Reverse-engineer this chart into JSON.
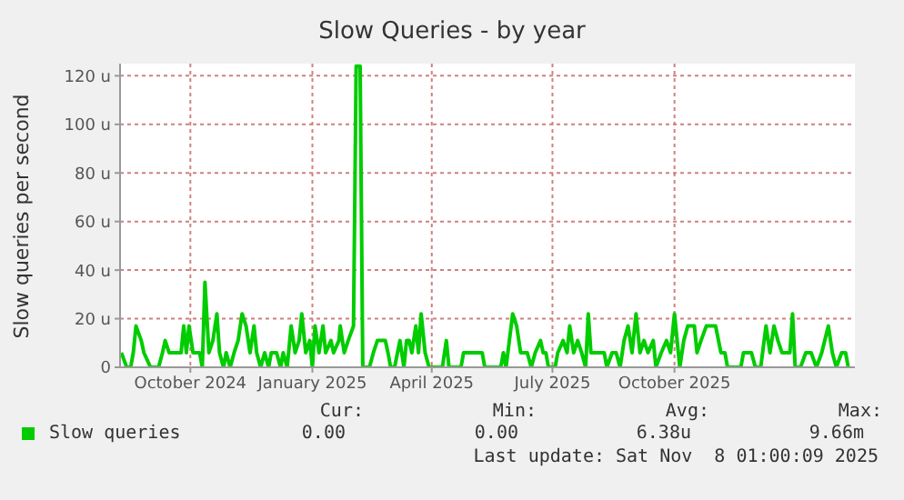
{
  "chart_data": {
    "type": "line",
    "title": "Slow Queries - by year",
    "ylabel": "Slow queries per second",
    "x": [
      "2024-08-10",
      "2024-08-14",
      "2024-08-17",
      "2024-08-19",
      "2024-08-21",
      "2024-08-25",
      "2024-08-27",
      "2024-09-01",
      "2024-09-07",
      "2024-09-10",
      "2024-09-12",
      "2024-09-15",
      "2024-09-24",
      "2024-09-26",
      "2024-09-28",
      "2024-09-30",
      "2024-10-03",
      "2024-10-08",
      "2024-10-10",
      "2024-10-12",
      "2024-10-15",
      "2024-10-18",
      "2024-10-21",
      "2024-10-23",
      "2024-10-26",
      "2024-10-28",
      "2024-10-31",
      "2024-11-03",
      "2024-11-06",
      "2024-11-09",
      "2024-11-12",
      "2024-11-15",
      "2024-11-18",
      "2024-11-20",
      "2024-11-23",
      "2024-11-26",
      "2024-11-29",
      "2024-12-01",
      "2024-12-05",
      "2024-12-08",
      "2024-12-10",
      "2024-12-13",
      "2024-12-16",
      "2024-12-19",
      "2024-12-22",
      "2024-12-24",
      "2024-12-27",
      "2024-12-30",
      "2025-01-01",
      "2025-01-03",
      "2025-01-06",
      "2025-01-09",
      "2025-01-11",
      "2025-01-15",
      "2025-01-17",
      "2025-01-21",
      "2025-01-22",
      "2025-01-25",
      "2025-01-28",
      "2025-02-01",
      "2025-02-03",
      "2025-02-06",
      "2025-02-08",
      "2025-02-13",
      "2025-02-16",
      "2025-02-19",
      "2025-02-22",
      "2025-02-25",
      "2025-02-27",
      "2025-03-01",
      "2025-03-04",
      "2025-03-08",
      "2025-03-11",
      "2025-03-13",
      "2025-03-15",
      "2025-03-17",
      "2025-03-20",
      "2025-03-22",
      "2025-03-24",
      "2025-03-27",
      "2025-03-30",
      "2025-04-09",
      "2025-04-12",
      "2025-04-14",
      "2025-04-23",
      "2025-04-25",
      "2025-05-09",
      "2025-05-11",
      "2025-05-23",
      "2025-05-25",
      "2025-05-27",
      "2025-06-01",
      "2025-06-04",
      "2025-06-07",
      "2025-06-12",
      "2025-06-15",
      "2025-06-18",
      "2025-06-22",
      "2025-06-24",
      "2025-06-26",
      "2025-06-28",
      "2025-07-03",
      "2025-07-05",
      "2025-07-09",
      "2025-07-12",
      "2025-07-14",
      "2025-07-17",
      "2025-07-20",
      "2025-07-23",
      "2025-07-26",
      "2025-07-28",
      "2025-07-30",
      "2025-08-04",
      "2025-08-09",
      "2025-08-11",
      "2025-08-15",
      "2025-08-18",
      "2025-08-21",
      "2025-08-24",
      "2025-08-27",
      "2025-08-30",
      "2025-09-02",
      "2025-09-05",
      "2025-09-08",
      "2025-09-11",
      "2025-09-15",
      "2025-09-17",
      "2025-09-21",
      "2025-09-25",
      "2025-09-28",
      "2025-10-01",
      "2025-10-05",
      "2025-10-08",
      "2025-10-11",
      "2025-10-16",
      "2025-10-18",
      "2025-10-21",
      "2025-10-25",
      "2025-11-01",
      "2025-11-05",
      "2025-11-08",
      "2025-11-10",
      "2025-11-20",
      "2025-11-22",
      "2025-11-28",
      "2025-12-01",
      "2025-12-05",
      "2025-12-09",
      "2025-12-12",
      "2025-12-15",
      "2025-12-18",
      "2025-12-21",
      "2025-12-27",
      "2025-12-29",
      "2025-12-31",
      "2026-01-04",
      "2026-01-08",
      "2026-01-12",
      "2026-01-16",
      "2026-01-20",
      "2026-01-25",
      "2026-01-28",
      "2026-01-31",
      "2026-02-04",
      "2026-02-07",
      "2026-02-09"
    ],
    "series": [
      {
        "name": "Slow queries",
        "color": "#00cc00",
        "values": [
          6,
          0,
          0,
          6,
          17,
          11,
          6,
          0,
          0,
          6,
          11,
          6,
          6,
          17,
          6,
          17,
          6,
          6,
          0,
          35,
          6,
          11,
          22,
          6,
          0,
          6,
          0,
          6,
          11,
          22,
          17,
          6,
          17,
          6,
          0,
          6,
          0,
          6,
          6,
          0,
          6,
          0,
          17,
          6,
          11,
          22,
          6,
          11,
          0,
          17,
          6,
          17,
          6,
          11,
          6,
          11,
          17,
          6,
          11,
          17,
          124,
          124,
          0,
          0,
          6,
          11,
          11,
          11,
          6,
          0,
          0,
          11,
          0,
          11,
          11,
          6,
          17,
          6,
          22,
          6,
          0,
          0,
          11,
          0,
          0,
          6,
          6,
          0,
          0,
          6,
          0,
          22,
          17,
          6,
          6,
          0,
          6,
          11,
          6,
          6,
          0,
          0,
          6,
          11,
          6,
          17,
          6,
          11,
          6,
          0,
          22,
          6,
          6,
          6,
          0,
          6,
          6,
          0,
          11,
          17,
          6,
          22,
          6,
          11,
          6,
          11,
          0,
          6,
          11,
          6,
          22,
          0,
          11,
          17,
          17,
          6,
          11,
          17,
          17,
          6,
          6,
          0,
          0,
          6,
          6,
          0,
          0,
          17,
          6,
          17,
          11,
          6,
          6,
          22,
          0,
          0,
          6,
          6,
          0,
          6,
          17,
          6,
          0,
          6,
          6,
          0
        ]
      }
    ],
    "xlim": [
      "2024-08-09",
      "2026-02-14"
    ],
    "xticks": [
      {
        "value": "2024-10-01",
        "label": "October 2024"
      },
      {
        "value": "2025-01-01",
        "label": "January 2025"
      },
      {
        "value": "2025-04-01",
        "label": "April 2025"
      },
      {
        "value": "2025-07-01",
        "label": "July 2025"
      },
      {
        "value": "2025-10-01",
        "label": "October 2025"
      }
    ],
    "ylim": [
      0,
      125
    ],
    "yticks": [
      0,
      {
        "value": 20,
        "label": "20 u"
      },
      {
        "value": 40,
        "label": "40 u"
      },
      {
        "value": 60,
        "label": "60 u"
      },
      {
        "value": 80,
        "label": "80 u"
      },
      {
        "value": 100,
        "label": "100 u"
      },
      {
        "value": 120,
        "label": "120 u"
      }
    ],
    "grid": true,
    "legend": "bottom",
    "marker": "none",
    "line_style": "solid",
    "annotations": [
      "Cur:",
      "0.00",
      "Min:",
      "0.00",
      "Avg:",
      "6.38u",
      "Max:",
      "9.66m",
      "Last update: Sat Nov  8 01:00:09 2025"
    ]
  }
}
